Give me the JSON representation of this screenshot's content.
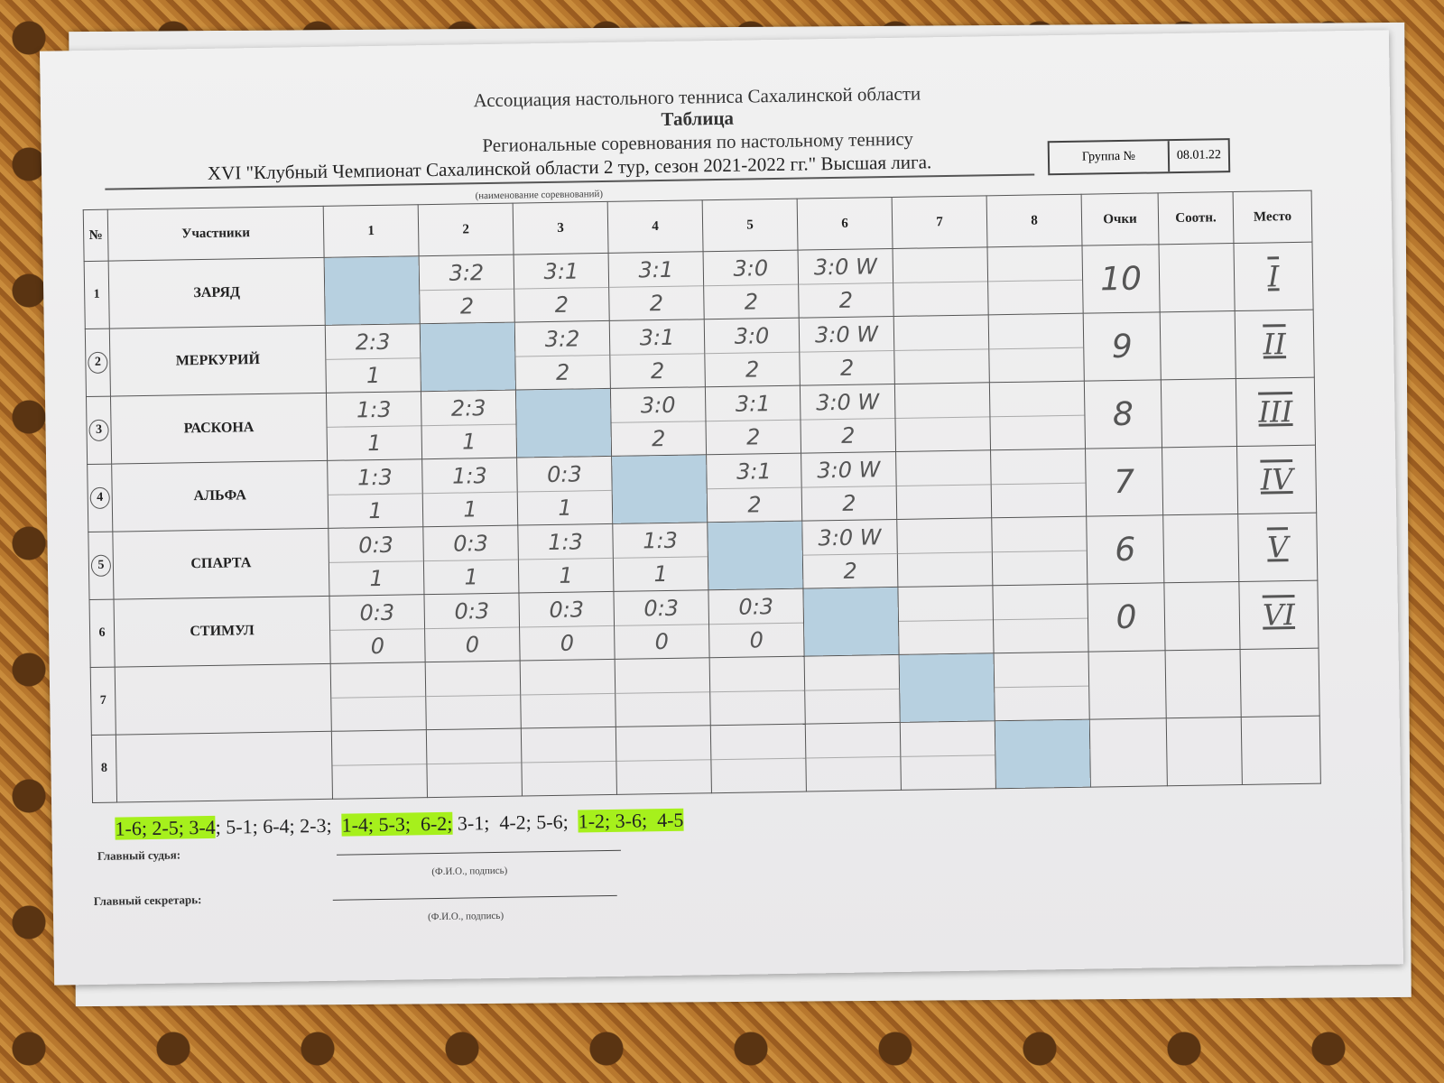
{
  "header": {
    "org": "Ассоциация настольного тенниса Сахалинской области",
    "doc_type": "Таблица",
    "event_type": "Региональные соревнования по настольному теннису",
    "event_name": "XVI  \"Клубный Чемпионат Сахалинской области 2 тур, сезон 2021-2022 гг.\" Высшая лига.",
    "event_caption": "(наименование соревнований)",
    "group_label": "Группа №",
    "group_value": "08.01.22"
  },
  "columns": [
    "№",
    "Участники",
    "1",
    "2",
    "3",
    "4",
    "5",
    "6",
    "7",
    "8",
    "Очки",
    "Соотн.",
    "Место"
  ],
  "rows": [
    {
      "num": "1",
      "circled": false,
      "name": "ЗАРЯД",
      "cells": [
        null,
        [
          "3:2",
          "2"
        ],
        [
          "3:1",
          "2"
        ],
        [
          "3:1",
          "2"
        ],
        [
          "3:0",
          "2"
        ],
        [
          "3:0 W",
          "2"
        ],
        [
          "",
          ""
        ],
        [
          "",
          ""
        ]
      ],
      "points": "10",
      "ratio": "",
      "place": "I"
    },
    {
      "num": "2",
      "circled": true,
      "name": "МЕРКУРИЙ",
      "cells": [
        [
          "2:3",
          "1"
        ],
        null,
        [
          "3:2",
          "2"
        ],
        [
          "3:1",
          "2"
        ],
        [
          "3:0",
          "2"
        ],
        [
          "3:0 W",
          "2"
        ],
        [
          "",
          ""
        ],
        [
          "",
          ""
        ]
      ],
      "points": "9",
      "ratio": "",
      "place": "II"
    },
    {
      "num": "3",
      "circled": true,
      "name": "РАСКОНА",
      "cells": [
        [
          "1:3",
          "1"
        ],
        [
          "2:3",
          "1"
        ],
        null,
        [
          "3:0",
          "2"
        ],
        [
          "3:1",
          "2"
        ],
        [
          "3:0 W",
          "2"
        ],
        [
          "",
          ""
        ],
        [
          "",
          ""
        ]
      ],
      "points": "8",
      "ratio": "",
      "place": "III"
    },
    {
      "num": "4",
      "circled": true,
      "name": "АЛЬФА",
      "cells": [
        [
          "1:3",
          "1"
        ],
        [
          "1:3",
          "1"
        ],
        [
          "0:3",
          "1"
        ],
        null,
        [
          "3:1",
          "2"
        ],
        [
          "3:0 W",
          "2"
        ],
        [
          "",
          ""
        ],
        [
          "",
          ""
        ]
      ],
      "points": "7",
      "ratio": "",
      "place": "IV"
    },
    {
      "num": "5",
      "circled": true,
      "name": "СПАРТА",
      "cells": [
        [
          "0:3",
          "1"
        ],
        [
          "0:3",
          "1"
        ],
        [
          "1:3",
          "1"
        ],
        [
          "1:3",
          "1"
        ],
        null,
        [
          "3:0 W",
          "2"
        ],
        [
          "",
          ""
        ],
        [
          "",
          ""
        ]
      ],
      "points": "6",
      "ratio": "",
      "place": "V"
    },
    {
      "num": "6",
      "circled": false,
      "name": "СТИМУЛ",
      "cells": [
        [
          "0:3",
          "0"
        ],
        [
          "0:3",
          "0"
        ],
        [
          "0:3",
          "0"
        ],
        [
          "0:3",
          "0"
        ],
        [
          "0:3",
          "0"
        ],
        null,
        [
          "",
          ""
        ],
        [
          "",
          ""
        ]
      ],
      "points": "0",
      "ratio": "",
      "place": "VI"
    },
    {
      "num": "7",
      "circled": false,
      "name": "",
      "cells": [
        [
          "",
          ""
        ],
        [
          "",
          ""
        ],
        [
          "",
          ""
        ],
        [
          "",
          ""
        ],
        [
          "",
          ""
        ],
        [
          "",
          ""
        ],
        null,
        [
          "",
          ""
        ]
      ],
      "points": "",
      "ratio": "",
      "place": ""
    },
    {
      "num": "8",
      "circled": false,
      "name": "",
      "cells": [
        [
          "",
          ""
        ],
        [
          "",
          ""
        ],
        [
          "",
          ""
        ],
        [
          "",
          ""
        ],
        [
          "",
          ""
        ],
        [
          "",
          ""
        ],
        [
          "",
          ""
        ],
        null
      ],
      "points": "",
      "ratio": "",
      "place": ""
    }
  ],
  "schedule": [
    {
      "text": "1-6; 2-5; 3-4",
      "highlighted": true
    },
    {
      "text": "; 5-1; 6-4; 2-3;  ",
      "highlighted": false
    },
    {
      "text": "1-4; 5-3;  6-2;",
      "highlighted": true
    },
    {
      "text": " 3-1;  4-2; 5-6;  ",
      "highlighted": false
    },
    {
      "text": "1-2; 3-6;  4-5",
      "highlighted": true
    }
  ],
  "signatures": {
    "judge_label": "Главный судья:",
    "secretary_label": "Главный секретарь:",
    "caption": "(Ф.И.О., подпись)"
  },
  "colors": {
    "diagonal": "#b7d0e0",
    "highlight": "#a6f01c"
  }
}
